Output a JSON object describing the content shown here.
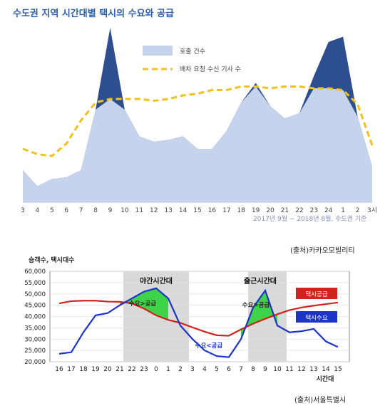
{
  "chart1": {
    "title": "수도권 지역 시간대별 택시의 수요와 공급",
    "legend_area": "호출 건수",
    "legend_line": "배차 요청 수신 기사 수",
    "note": "2017년 9월 ~ 2018년 8월, 수도권 기준",
    "source": "(출처)카카오모빌리티"
  },
  "chart2": {
    "ylabel": "승객수, 택시대수",
    "xlabel": "시간대",
    "band1_label": "야간시간대",
    "band2_label": "출근시간대",
    "demand_gt_supply": "수요>공급",
    "demand_lt_supply": "수요<공급",
    "legend_supply": "택시공급",
    "legend_demand": "택시수요",
    "source": "(출처)서울특별시"
  },
  "chart_data": [
    {
      "type": "area",
      "categories": [
        "3",
        "4",
        "5",
        "6",
        "7",
        "8",
        "9",
        "10",
        "11",
        "12",
        "13",
        "14",
        "15",
        "16",
        "17",
        "18",
        "19",
        "20",
        "21",
        "22",
        "23",
        "24",
        "1",
        "2",
        "3시"
      ],
      "series": [
        {
          "name": "호출 건수",
          "values": [
            18,
            9,
            13,
            14,
            18,
            52,
            98,
            52,
            37,
            34,
            35,
            37,
            30,
            30,
            40,
            56,
            67,
            54,
            47,
            50,
            71,
            90,
            93,
            48,
            20
          ],
          "color": "#c5d4ec",
          "peak_color": "#2e4f8f"
        },
        {
          "name": "배차 요청 수신 기사 수",
          "values": [
            30,
            27,
            26,
            33,
            46,
            56,
            58,
            58,
            58,
            57,
            58,
            60,
            61,
            63,
            63,
            65,
            65,
            64,
            65,
            65,
            64,
            64,
            63,
            55,
            32
          ],
          "color": "#f2c21a"
        }
      ],
      "ylim": [
        0,
        100
      ]
    },
    {
      "type": "line",
      "categories": [
        "16",
        "17",
        "18",
        "19",
        "20",
        "21",
        "22",
        "23",
        "0",
        "1",
        "2",
        "3",
        "4",
        "5",
        "6",
        "7",
        "8",
        "9",
        "10",
        "11",
        "12",
        "13",
        "14",
        "15"
      ],
      "series": [
        {
          "name": "택시수요",
          "values": [
            23500,
            24200,
            33000,
            40500,
            41500,
            45000,
            48000,
            51000,
            52500,
            48000,
            36000,
            30000,
            25000,
            22500,
            22000,
            30000,
            44000,
            51500,
            36000,
            33000,
            33500,
            34500,
            29000,
            26500
          ],
          "color": "#1c35c8"
        },
        {
          "name": "택시공급",
          "values": [
            45800,
            46800,
            47000,
            47000,
            46600,
            46500,
            45800,
            43500,
            40500,
            38500,
            37200,
            35200,
            33300,
            31700,
            31500,
            34300,
            36800,
            39000,
            41000,
            42800,
            44000,
            44800,
            45500,
            46200
          ],
          "color": "#d0231c"
        }
      ],
      "ylim": [
        20000,
        60000
      ],
      "yticks": [
        "20,000",
        "25,000",
        "30,000",
        "35,000",
        "40,000",
        "45,000",
        "50,000",
        "55,000",
        "60,000"
      ]
    }
  ]
}
